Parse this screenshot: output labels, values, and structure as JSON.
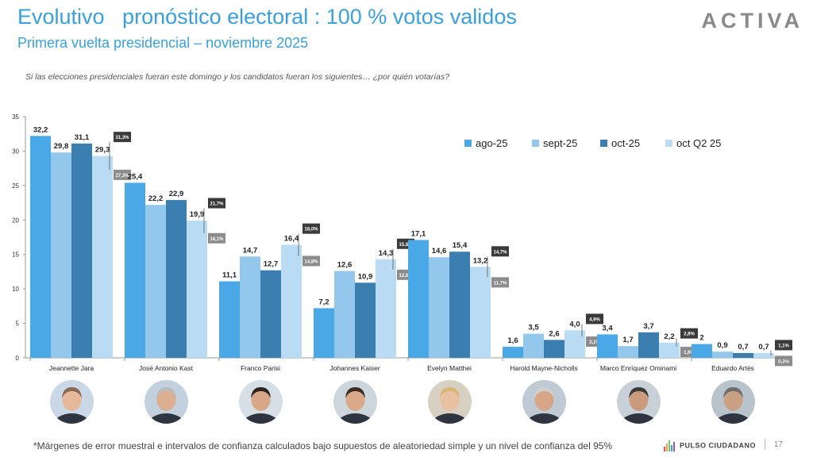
{
  "header": {
    "title": "Evolutivo   pronóstico electoral : 100 % votos validos",
    "subtitle": "Primera vuelta presidencial – noviembre 2025",
    "brand": "ACTIVA",
    "question": "Si las elecciones presidenciales fueran este domingo y los candidatos fueran los siguientes… ¿por quién votarías?"
  },
  "footer": {
    "footnote": "*Márgenes de error muestral e intervalos de confianza calculados bajo supuestos de aleatoriedad simple y un nivel de confianza del 95%",
    "source": "PULSO CIUDADANO",
    "page": "17"
  },
  "colors": {
    "ago-25": "#4ba8e6",
    "sept-25": "#93c8ec",
    "oct-25": "#3b7fb0",
    "oct Q2 25": "#b9dcf4",
    "upper_box": "#3a3a3a",
    "lower_box": "#8c8c8c"
  },
  "chart_data": {
    "type": "bar",
    "categories": [
      "Jeannette Jara",
      "José Antonio Kast",
      "Franco Parisi",
      "Johannes Kaiser",
      "Evelyn Matthei",
      "Harold Mayne-Nicholls",
      "Marco Enríquez Ominami",
      "Eduardo Artés"
    ],
    "series": [
      {
        "name": "ago-25",
        "values": [
          32.2,
          25.4,
          11.1,
          7.2,
          17.1,
          1.6,
          3.4,
          2
        ],
        "labels": [
          "32,2",
          "25,4",
          "11,1",
          "7,2",
          "17,1",
          "1,6",
          "3,4",
          "2"
        ]
      },
      {
        "name": "sept-25",
        "values": [
          29.8,
          22.2,
          14.7,
          12.6,
          14.6,
          3.5,
          1.7,
          0.9
        ],
        "labels": [
          "29,8",
          "22,2",
          "14,7",
          "12,6",
          "14,6",
          "3,5",
          "1,7",
          "0,9"
        ]
      },
      {
        "name": "oct-25",
        "values": [
          31.1,
          22.9,
          12.7,
          10.9,
          15.4,
          2.6,
          3.7,
          0.7
        ],
        "labels": [
          "31,1",
          "22,9",
          "12,7",
          "10,9",
          "15,4",
          "2,6",
          "3,7",
          "0,7"
        ]
      },
      {
        "name": "oct Q2 25",
        "values": [
          29.3,
          19.9,
          16.4,
          14.3,
          13.2,
          4.0,
          2.2,
          0.7
        ],
        "labels": [
          "29,3",
          "19,9",
          "16,4",
          "14,3",
          "13,2",
          "4,0",
          "2,2",
          "0,7"
        ]
      }
    ],
    "confidence_interval": {
      "upper": [
        31.3,
        21.7,
        18.0,
        15.8,
        14.7,
        4.9,
        2.8,
        1.1
      ],
      "upper_labels": [
        "31,3%",
        "21,7%",
        "18,0%",
        "15,8%",
        "14,7%",
        "4,9%",
        "2,8%",
        "1,1%"
      ],
      "lower": [
        27.3,
        18.1,
        14.8,
        12.8,
        11.7,
        3.1,
        1.6,
        0.3
      ],
      "lower_labels": [
        "27,3%",
        "18,1%",
        "14,8%",
        "12,8%",
        "11,7%",
        "3,1%",
        "1,6%",
        "0,3%"
      ]
    },
    "ylim": [
      0,
      35
    ],
    "yticks": [
      0,
      5,
      10,
      15,
      20,
      25,
      30,
      35
    ],
    "legend_position": "top-right",
    "grid": false
  }
}
